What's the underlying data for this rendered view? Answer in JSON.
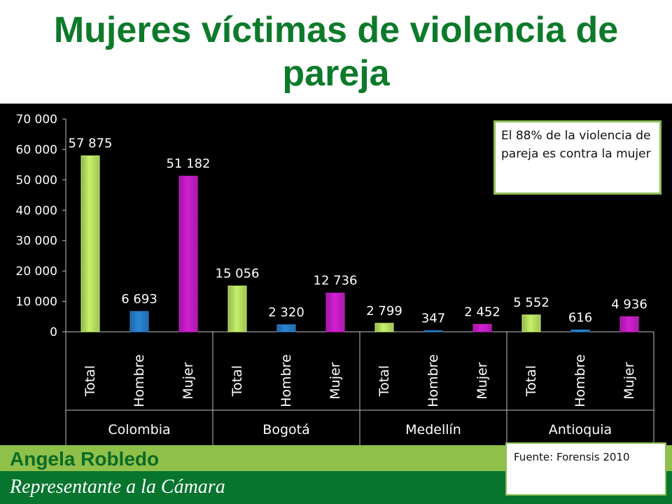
{
  "header": {
    "title": "Mujeres víctimas de violencia de pareja"
  },
  "annotation": {
    "text": "El 88% de la violencia de pareja es contra la mujer"
  },
  "footer": {
    "presenter": "Angela Robledo",
    "role": "Representante a la Cámara",
    "source": "Fuente: Forensis 2010"
  },
  "colors": {
    "title": "#0d7a2a",
    "total_bar": "#c6f26a",
    "hombre_bar": "#2a86d6",
    "mujer_bar": "#d41fd4",
    "chart_background": "#000000"
  },
  "chart_data": {
    "type": "bar",
    "title": "Mujeres víctimas de violencia de pareja",
    "groups": [
      "Colombia",
      "Bogotá",
      "Medellín",
      "Antioquia"
    ],
    "subcategories": [
      "Total",
      "Hombre",
      "Mujer"
    ],
    "values": [
      [
        57875,
        6693,
        51182
      ],
      [
        15056,
        2320,
        12736
      ],
      [
        2799,
        347,
        2452
      ],
      [
        5552,
        616,
        4936
      ]
    ],
    "value_labels": [
      [
        "57 875",
        "6 693",
        "51 182"
      ],
      [
        "15 056",
        "2 320",
        "12 736"
      ],
      [
        "2 799",
        "347",
        "2 452"
      ],
      [
        "5 552",
        "616",
        "4 936"
      ]
    ],
    "ylim": [
      0,
      70000
    ],
    "yticks": [
      0,
      10000,
      20000,
      30000,
      40000,
      50000,
      60000,
      70000
    ],
    "ytick_labels": [
      "0",
      "10 000",
      "20 000",
      "30 000",
      "40 000",
      "50 000",
      "60 000",
      "70 000"
    ],
    "grid": false,
    "legend": "none"
  }
}
